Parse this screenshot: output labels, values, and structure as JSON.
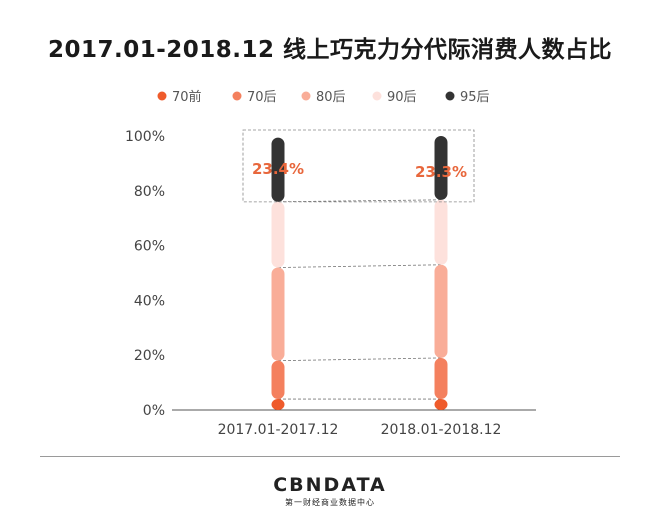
{
  "chart_data": {
    "type": "bar",
    "stacked": true,
    "title": "2017.01-2018.12 线上巧克力分代际消费人数占比",
    "categories": [
      "2017.01-2017.12",
      "2018.01-2018.12"
    ],
    "ylim": [
      0,
      100
    ],
    "y_ticks": [
      "0%",
      "20%",
      "40%",
      "60%",
      "80%",
      "100%"
    ],
    "legend_position": "top",
    "series": [
      {
        "name": "70前",
        "values": [
          4,
          4
        ],
        "color": "#ef5b2b"
      },
      {
        "name": "70后",
        "values": [
          14,
          15
        ],
        "color": "#f4805e"
      },
      {
        "name": "80后",
        "values": [
          34,
          34
        ],
        "color": "#f9ad98"
      },
      {
        "name": "90后",
        "values": [
          24,
          23.7
        ],
        "color": "#fde1dc"
      },
      {
        "name": "95后",
        "values": [
          23.4,
          23.3
        ],
        "color": "#333333"
      }
    ],
    "annotations": [
      "23.4%",
      "23.3%"
    ],
    "annotation_color": "#e8673c"
  },
  "brand": {
    "name": "CBNDATA",
    "tagline": "第一财经商业数据中心"
  }
}
